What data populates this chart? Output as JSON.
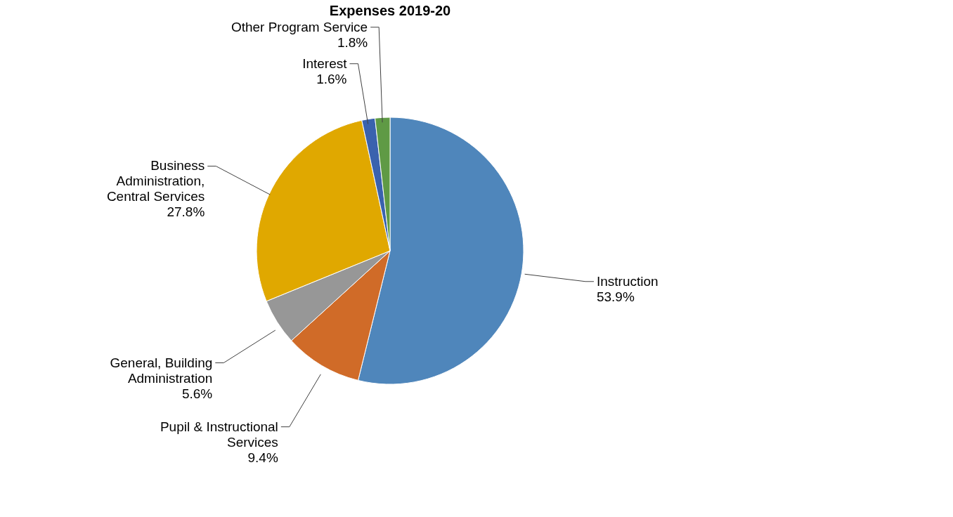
{
  "chart_data": {
    "type": "pie",
    "title": "Expenses 2019-20",
    "categories": [
      "Instruction",
      "Pupil & Instructional Services",
      "General, Building Administration",
      "Business Administration, Central Services",
      "Interest",
      "Other Program Service"
    ],
    "values": [
      53.9,
      9.4,
      5.6,
      27.8,
      1.6,
      1.8
    ],
    "value_labels": [
      "53.9%",
      "9.4%",
      "5.6%",
      "27.8%",
      "1.6%",
      "1.8%"
    ],
    "colors": [
      "#4f86bb",
      "#d06b28",
      "#979797",
      "#e0a800",
      "#3a62ae",
      "#5f9a45"
    ],
    "legend": false
  }
}
